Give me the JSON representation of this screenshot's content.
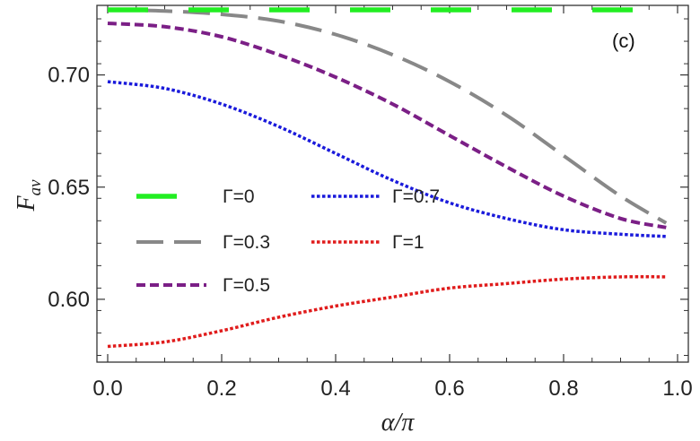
{
  "chart_data": {
    "type": "line",
    "title": "",
    "panel_label": "(c)",
    "xlabel": "α/π",
    "ylabel_main": "F",
    "ylabel_sub": "av",
    "xlim": [
      0,
      1
    ],
    "ylim": [
      0.572,
      0.731
    ],
    "xticks": [
      0.0,
      0.2,
      0.4,
      0.6,
      0.8,
      1.0
    ],
    "xtick_labels": [
      "0.0",
      "0.2",
      "0.4",
      "0.6",
      "0.8",
      "1.0"
    ],
    "yticks": [
      0.6,
      0.65,
      0.7
    ],
    "ytick_labels": [
      "0.60",
      "0.65",
      "0.70"
    ],
    "x": [
      0.0,
      0.1,
      0.2,
      0.3,
      0.4,
      0.5,
      0.6,
      0.7,
      0.8,
      0.9,
      0.98
    ],
    "series": [
      {
        "name": "Γ=0",
        "color": "#22ee22",
        "style": "long-dash",
        "values": [
          0.729,
          0.729,
          0.729,
          0.729,
          0.729,
          0.729,
          0.729,
          0.729,
          0.729,
          0.729,
          0.729
        ]
      },
      {
        "name": "Γ=0.3",
        "color": "#888888",
        "style": "dash",
        "values": [
          0.729,
          0.7285,
          0.727,
          0.724,
          0.718,
          0.709,
          0.697,
          0.682,
          0.664,
          0.646,
          0.634
        ]
      },
      {
        "name": "Γ=0.5",
        "color": "#7b1f86",
        "style": "short-dash",
        "values": [
          0.723,
          0.7215,
          0.717,
          0.709,
          0.699,
          0.687,
          0.673,
          0.659,
          0.646,
          0.636,
          0.632
        ]
      },
      {
        "name": "Γ=0.7",
        "color": "#1a1adb",
        "style": "dotted",
        "values": [
          0.697,
          0.694,
          0.687,
          0.677,
          0.665,
          0.653,
          0.643,
          0.636,
          0.631,
          0.629,
          0.628
        ]
      },
      {
        "name": "Γ=1",
        "color": "#e01c1c",
        "style": "dotted",
        "values": [
          0.579,
          0.581,
          0.586,
          0.592,
          0.597,
          0.601,
          0.605,
          0.607,
          0.609,
          0.61,
          0.61
        ]
      }
    ],
    "legend_position": "center-left, two columns",
    "grid": false
  }
}
